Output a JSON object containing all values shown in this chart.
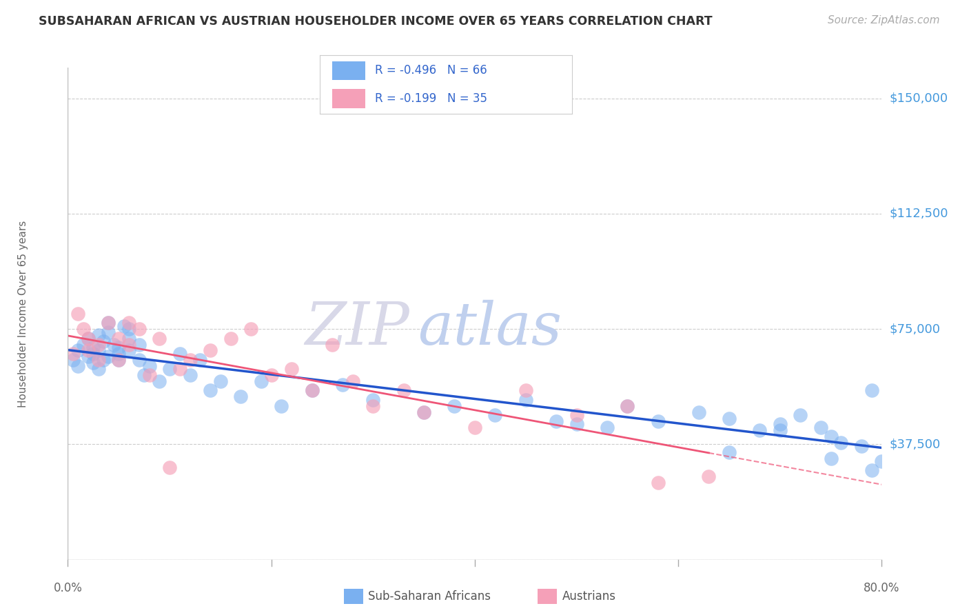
{
  "title": "SUBSAHARAN AFRICAN VS AUSTRIAN HOUSEHOLDER INCOME OVER 65 YEARS CORRELATION CHART",
  "source": "Source: ZipAtlas.com",
  "ylabel": "Householder Income Over 65 years",
  "blue_R": "R = -0.496",
  "blue_N": "N = 66",
  "pink_R": "R = -0.199",
  "pink_N": "N = 35",
  "legend_blue": "Sub-Saharan Africans",
  "legend_pink": "Austrians",
  "ytick_vals": [
    0,
    37500,
    75000,
    112500,
    150000
  ],
  "ytick_labels": [
    "",
    "$37,500",
    "$75,000",
    "$112,500",
    "$150,000"
  ],
  "xlim": [
    0.0,
    0.8
  ],
  "ylim": [
    0,
    160000
  ],
  "background_color": "#ffffff",
  "blue_dot_color": "#7ab0f0",
  "pink_dot_color": "#f5a0b8",
  "blue_line_color": "#2255cc",
  "pink_line_color": "#ee5577",
  "grid_color": "#cccccc",
  "watermark_zip": "ZIP",
  "watermark_atlas": "atlas",
  "blue_x": [
    0.005,
    0.01,
    0.01,
    0.015,
    0.02,
    0.02,
    0.025,
    0.025,
    0.025,
    0.03,
    0.03,
    0.03,
    0.035,
    0.035,
    0.04,
    0.04,
    0.04,
    0.045,
    0.05,
    0.05,
    0.05,
    0.055,
    0.06,
    0.06,
    0.06,
    0.07,
    0.07,
    0.075,
    0.08,
    0.09,
    0.1,
    0.11,
    0.12,
    0.13,
    0.14,
    0.15,
    0.17,
    0.19,
    0.21,
    0.24,
    0.27,
    0.3,
    0.35,
    0.38,
    0.42,
    0.45,
    0.48,
    0.5,
    0.53,
    0.55,
    0.58,
    0.62,
    0.65,
    0.68,
    0.7,
    0.72,
    0.74,
    0.75,
    0.76,
    0.78,
    0.79,
    0.8,
    0.65,
    0.7,
    0.75,
    0.79
  ],
  "blue_y": [
    65000,
    63000,
    68000,
    70000,
    72000,
    66000,
    67000,
    69000,
    64000,
    62000,
    68000,
    73000,
    65000,
    71000,
    66000,
    77000,
    74000,
    70000,
    69000,
    67000,
    65000,
    76000,
    72000,
    75000,
    68000,
    70000,
    65000,
    60000,
    63000,
    58000,
    62000,
    67000,
    60000,
    65000,
    55000,
    58000,
    53000,
    58000,
    50000,
    55000,
    57000,
    52000,
    48000,
    50000,
    47000,
    52000,
    45000,
    44000,
    43000,
    50000,
    45000,
    48000,
    46000,
    42000,
    44000,
    47000,
    43000,
    40000,
    38000,
    37000,
    55000,
    32000,
    35000,
    42000,
    33000,
    29000
  ],
  "pink_x": [
    0.005,
    0.01,
    0.015,
    0.02,
    0.02,
    0.03,
    0.03,
    0.04,
    0.05,
    0.05,
    0.06,
    0.06,
    0.07,
    0.08,
    0.09,
    0.1,
    0.11,
    0.12,
    0.14,
    0.16,
    0.18,
    0.2,
    0.22,
    0.24,
    0.26,
    0.28,
    0.3,
    0.33,
    0.35,
    0.4,
    0.45,
    0.5,
    0.55,
    0.58,
    0.63
  ],
  "pink_y": [
    67000,
    80000,
    75000,
    72000,
    68000,
    65000,
    70000,
    77000,
    72000,
    65000,
    70000,
    77000,
    75000,
    60000,
    72000,
    30000,
    62000,
    65000,
    68000,
    72000,
    75000,
    60000,
    62000,
    55000,
    70000,
    58000,
    50000,
    55000,
    48000,
    43000,
    55000,
    47000,
    50000,
    25000,
    27000
  ]
}
